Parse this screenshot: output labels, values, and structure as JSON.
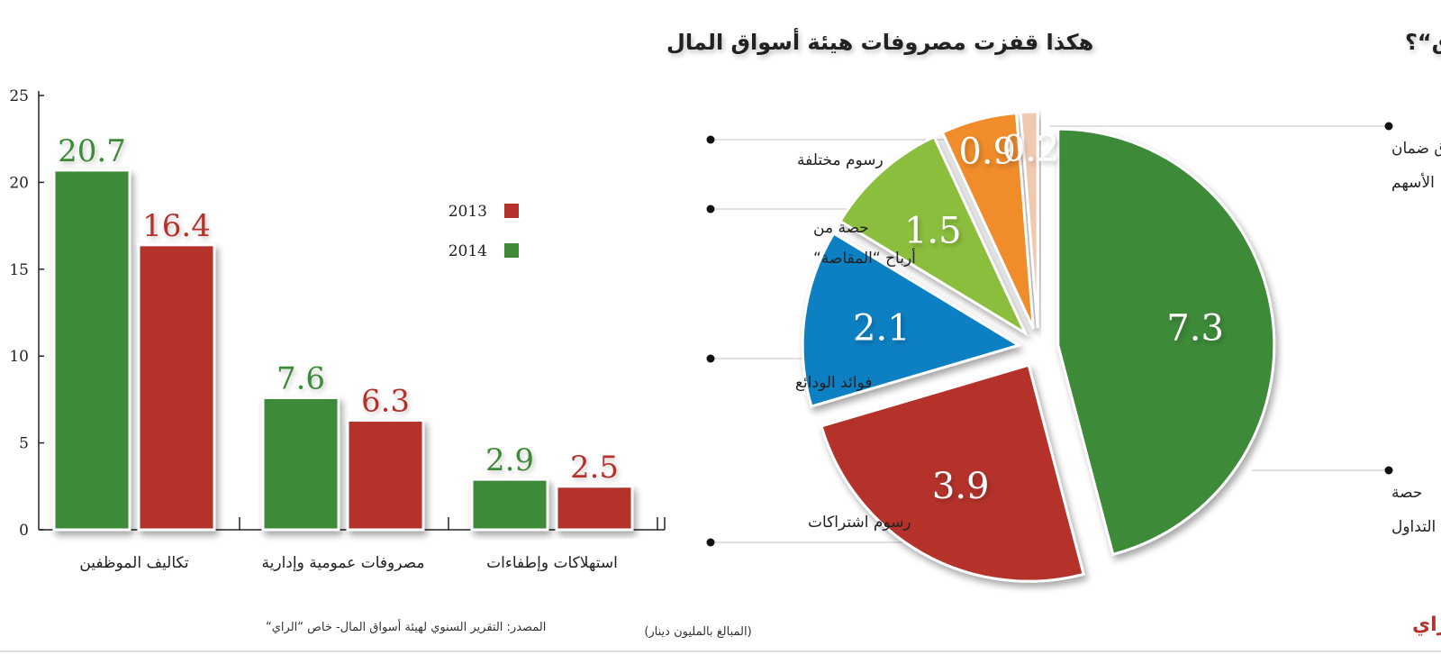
{
  "colors": {
    "y2013": "#b5332c",
    "y2014": "#3e8a38",
    "blue": "#0b80c3",
    "lime": "#8bbe3d",
    "orange": "#f08c2b",
    "peach": "#efc9b0"
  },
  "chart_data": [
    {
      "type": "bar",
      "title": "هكذا قفزت مصروفات هيئة أسواق المال",
      "categories": [
        "تكاليف الموظفين",
        "مصروفات عمومية وإدارية",
        "استهلاكات وإطفاءات"
      ],
      "series": [
        {
          "name": "2014",
          "values": [
            20.7,
            7.6,
            2.9
          ]
        },
        {
          "name": "2013",
          "values": [
            16.4,
            6.3,
            2.5
          ]
        }
      ],
      "yticks": [
        "0",
        "5",
        "10",
        "15",
        "20",
        "25"
      ],
      "ylim": [
        0,
        25
      ],
      "value_labels": {
        "2014": [
          "20.7",
          "7.6",
          "2.9"
        ],
        "2013": [
          "16.4",
          "6.3",
          "2.5"
        ]
      },
      "legend": [
        {
          "name": "2013"
        },
        {
          "name": "2014"
        }
      ],
      "legend_position": "top-center",
      "grid": false
    },
    {
      "type": "pie",
      "title": "من أين تأتي الإيرادات إلى “هيئة الأسواق“؟",
      "slices": [
        {
          "key": "trading",
          "label_lines": [
            "حصة",
            "في عمولة التداول"
          ],
          "value": 7.3,
          "value_label": "7.3",
          "color": "#3e8a38"
        },
        {
          "key": "subscriptions",
          "label_lines": [
            "رسوم اشتراكات"
          ],
          "value": 3.9,
          "value_label": "3.9",
          "color": "#b5332c"
        },
        {
          "key": "deposits",
          "label_lines": [
            "فوائد الودائع"
          ],
          "value": 2.1,
          "value_label": "2.1",
          "color": "#0b80c3"
        },
        {
          "key": "clearing",
          "label_lines": [
            "حصة من",
            "أرباح “المقاصة“"
          ],
          "value": 1.5,
          "value_label": "1.5",
          "color": "#8bbe3d"
        },
        {
          "key": "misc",
          "label_lines": [
            "رسوم مختلفة"
          ],
          "value": 0.9,
          "value_label": "0.9",
          "color": "#f08c2b"
        },
        {
          "key": "guarantee",
          "label_lines": [
            "صندوق ضمان",
            "الأسهم"
          ],
          "value": 0.2,
          "value_label": "0.2",
          "color": "#efc9b0"
        }
      ]
    }
  ],
  "footer": {
    "source": "المصدر: التقرير السنوي لهيئة أسواق المال- خاص “الراي“",
    "unit_note": "(المبالغ بالمليون دينار)",
    "logo": "الراي"
  }
}
